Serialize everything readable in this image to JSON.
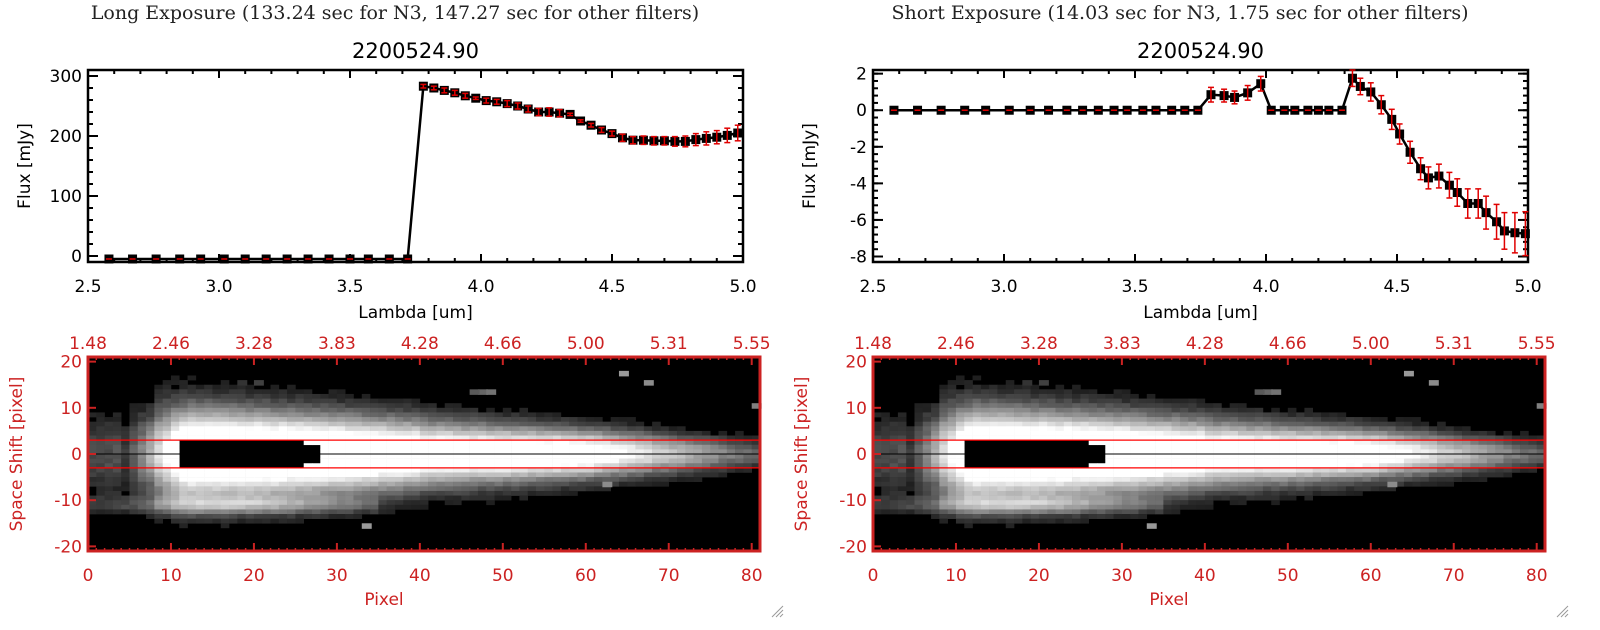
{
  "colors": {
    "axis": "#000000",
    "errorbar": "#e00000",
    "image_axis": "#cc2222",
    "aperture": "#ff0000"
  },
  "chart_data": [
    {
      "type": "line",
      "panel_title": "Long Exposure (133.24 sec for N3, 147.27 sec for other filters)",
      "title": "2200524.90",
      "xlabel": "Lambda [um]",
      "ylabel": "Flux [mJy]",
      "xlim": [
        2.5,
        5.0
      ],
      "ylim": [
        -10,
        310
      ],
      "xticks": [
        "2.5",
        "3.0",
        "3.5",
        "4.0",
        "4.5",
        "5.0"
      ],
      "xtick_values": [
        2.5,
        3.0,
        3.5,
        4.0,
        4.5,
        5.0
      ],
      "yticks": [
        "0",
        "100",
        "200",
        "300"
      ],
      "ytick_values": [
        0,
        100,
        200,
        300
      ],
      "grid": false,
      "series": [
        {
          "name": "flux",
          "x": [
            2.58,
            2.67,
            2.76,
            2.85,
            2.93,
            3.02,
            3.1,
            3.18,
            3.26,
            3.34,
            3.42,
            3.5,
            3.57,
            3.65,
            3.72,
            3.78,
            3.82,
            3.86,
            3.9,
            3.94,
            3.98,
            4.02,
            4.06,
            4.1,
            4.14,
            4.18,
            4.22,
            4.26,
            4.3,
            4.34,
            4.38,
            4.42,
            4.46,
            4.5,
            4.54,
            4.58,
            4.62,
            4.66,
            4.7,
            4.74,
            4.78,
            4.82,
            4.86,
            4.9,
            4.94,
            4.98
          ],
          "y": [
            -5,
            -5,
            -5,
            -5,
            -5,
            -5,
            -5,
            -5,
            -5,
            -5,
            -5,
            -5,
            -5,
            -5,
            -5,
            283,
            280,
            276,
            272,
            267,
            263,
            259,
            257,
            254,
            250,
            245,
            240,
            240,
            238,
            236,
            225,
            218,
            210,
            204,
            197,
            193,
            193,
            192,
            192,
            191,
            191,
            194,
            196,
            198,
            201,
            205
          ],
          "yerr": [
            0,
            0,
            0,
            0,
            0,
            0,
            0,
            0,
            0,
            0,
            0,
            0,
            0,
            0,
            0,
            3,
            3,
            4,
            4,
            4,
            2,
            4,
            4,
            5,
            5,
            5,
            6,
            7,
            6,
            2,
            2,
            3,
            4,
            4,
            6,
            6,
            7,
            7,
            7,
            8,
            9,
            10,
            11,
            11,
            12,
            13
          ]
        }
      ]
    },
    {
      "type": "line",
      "panel_title": "Short Exposure (14.03 sec for N3, 1.75 sec for other filters)",
      "title": "2200524.90",
      "xlabel": "Lambda [um]",
      "ylabel": "Flux [mJy]",
      "xlim": [
        2.5,
        5.0
      ],
      "ylim": [
        -8.3,
        2.2
      ],
      "xticks": [
        "2.5",
        "3.0",
        "3.5",
        "4.0",
        "4.5",
        "5.0"
      ],
      "xtick_values": [
        2.5,
        3.0,
        3.5,
        4.0,
        4.5,
        5.0
      ],
      "yticks": [
        "-8",
        "-6",
        "-4",
        "-2",
        "0",
        "2"
      ],
      "ytick_values": [
        -8,
        -6,
        -4,
        -2,
        0,
        2
      ],
      "grid": false,
      "series": [
        {
          "name": "flux",
          "x": [
            2.58,
            2.67,
            2.76,
            2.85,
            2.93,
            3.02,
            3.1,
            3.17,
            3.24,
            3.3,
            3.36,
            3.42,
            3.47,
            3.53,
            3.58,
            3.64,
            3.69,
            3.74,
            3.79,
            3.84,
            3.88,
            3.93,
            3.98,
            4.02,
            4.07,
            4.11,
            4.16,
            4.2,
            4.24,
            4.29,
            4.33,
            4.36,
            4.4,
            4.44,
            4.48,
            4.51,
            4.55,
            4.59,
            4.62,
            4.66,
            4.7,
            4.73,
            4.77,
            4.81,
            4.84,
            4.88,
            4.91,
            4.95,
            4.99
          ],
          "y": [
            0,
            0,
            0,
            0,
            0,
            0,
            0,
            0,
            0,
            0,
            0,
            0,
            0,
            0,
            0,
            0,
            0,
            0,
            0.85,
            0.8,
            0.7,
            0.95,
            1.45,
            0,
            0,
            0,
            0,
            0,
            0,
            0,
            1.75,
            1.3,
            1.0,
            0.3,
            -0.5,
            -1.3,
            -2.3,
            -3.2,
            -3.7,
            -3.6,
            -4.1,
            -4.5,
            -5.1,
            -5.1,
            -5.6,
            -6.1,
            -6.6,
            -6.7,
            -6.75
          ],
          "yerr": [
            0,
            0,
            0,
            0,
            0,
            0,
            0,
            0,
            0,
            0,
            0,
            0,
            0,
            0,
            0,
            0,
            0,
            0,
            0.4,
            0.35,
            0.35,
            0.4,
            0.4,
            0,
            0,
            0,
            0,
            0,
            0,
            0,
            0.45,
            0.45,
            0.5,
            0.5,
            0.55,
            0.55,
            0.6,
            0.6,
            0.6,
            0.65,
            0.7,
            0.75,
            0.8,
            0.8,
            0.9,
            0.95,
            1.0,
            1.1,
            1.2
          ]
        }
      ]
    }
  ],
  "images": [
    {
      "ylabel": "Space Shift [pixel]",
      "xlabel": "Pixel",
      "xlim": [
        0,
        81
      ],
      "ylim": [
        -21,
        21
      ],
      "xticks": [
        "0",
        "10",
        "20",
        "30",
        "40",
        "50",
        "60",
        "70",
        "80"
      ],
      "xtick_values": [
        0,
        10,
        20,
        30,
        40,
        50,
        60,
        70,
        80
      ],
      "yticks": [
        "-20",
        "-10",
        "0",
        "10",
        "20"
      ],
      "ytick_values": [
        -20,
        -10,
        0,
        10,
        20
      ],
      "top_ticks": [
        "1.48",
        "2.46",
        "3.28",
        "3.83",
        "4.28",
        "4.66",
        "5.00",
        "5.31",
        "5.55"
      ],
      "aperture": [
        -3,
        3
      ]
    },
    {
      "ylabel": "Space Shift [pixel]",
      "xlabel": "Pixel",
      "xlim": [
        0,
        81
      ],
      "ylim": [
        -21,
        21
      ],
      "xticks": [
        "0",
        "10",
        "20",
        "30",
        "40",
        "50",
        "60",
        "70",
        "80"
      ],
      "xtick_values": [
        0,
        10,
        20,
        30,
        40,
        50,
        60,
        70,
        80
      ],
      "yticks": [
        "-20",
        "-10",
        "0",
        "10",
        "20"
      ],
      "ytick_values": [
        -20,
        -10,
        0,
        10,
        20
      ],
      "top_ticks": [
        "1.48",
        "2.46",
        "3.28",
        "3.83",
        "4.28",
        "4.66",
        "5.00",
        "5.31",
        "5.55"
      ],
      "aperture": [
        -3,
        3
      ]
    }
  ]
}
